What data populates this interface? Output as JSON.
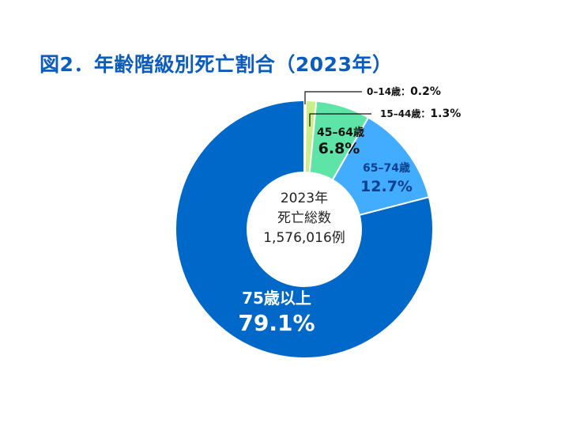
{
  "title": "図2．年齢階級別死亡割合（2023年）",
  "chart_data": {
    "type": "pie",
    "donut": true,
    "start": "12 o'clock, clockwise",
    "categories": [
      "0–14歳",
      "15–44歳",
      "45–64歳",
      "65–74歳",
      "75歳以上"
    ],
    "values": [
      0.2,
      1.3,
      6.8,
      12.7,
      79.1
    ],
    "value_labels": [
      "0.2%",
      "1.3%",
      "6.8%",
      "12.7%",
      "79.1%"
    ],
    "colors": [
      "#eef5a6",
      "#c9ee8a",
      "#5fe4a8",
      "#42acff",
      "#0068c9"
    ],
    "label_colors": [
      "#111111",
      "#111111",
      "#111111",
      "#0a3f8c",
      "#ffffff"
    ],
    "center_text": [
      "2023年",
      "死亡総数",
      "1,576,016例"
    ],
    "callout_separator": "："
  }
}
